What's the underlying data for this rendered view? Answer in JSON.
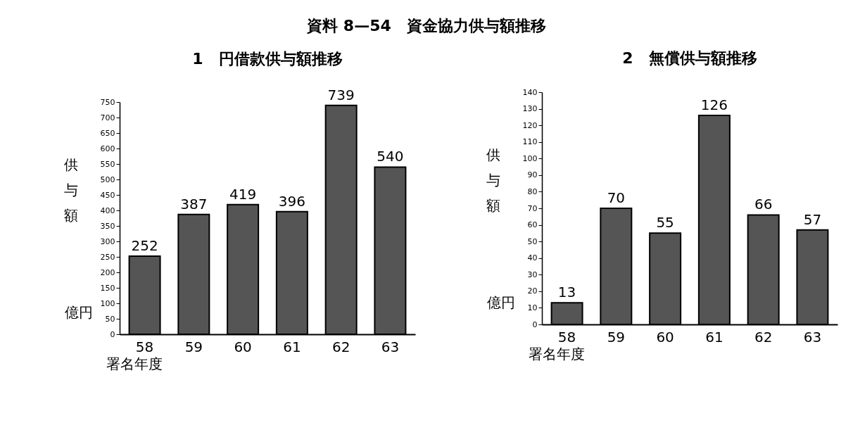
{
  "chart_data": [
    {
      "type": "bar",
      "title": "資料 8—54　資金協力供与額推移",
      "subtitle": "1　円借款供与額推移",
      "xlabel": "署名年度",
      "ylabel": "供与額",
      "annotations": [
        "億円"
      ],
      "categories": [
        "58",
        "59",
        "60",
        "61",
        "62",
        "63"
      ],
      "values": [
        252,
        387,
        419,
        396,
        739,
        540
      ],
      "color": "#555555",
      "ylim": [
        0,
        750
      ],
      "yticks": [
        0,
        50,
        100,
        150,
        200,
        250,
        300,
        350,
        400,
        450,
        500,
        550,
        600,
        650,
        700,
        750
      ],
      "data_labels": true
    },
    {
      "type": "bar",
      "title": "2　無償供与額推移",
      "xlabel": "署名年度",
      "ylabel": "供与額",
      "annotations": [
        "億円"
      ],
      "categories": [
        "58",
        "59",
        "60",
        "61",
        "62",
        "63"
      ],
      "values": [
        13,
        70,
        55,
        126,
        66,
        57
      ],
      "color": "#555555",
      "ylim": [
        0,
        140
      ],
      "yticks": [
        0,
        10,
        20,
        30,
        40,
        50,
        60,
        70,
        80,
        90,
        100,
        110,
        120,
        130,
        140
      ],
      "data_labels": true
    }
  ]
}
